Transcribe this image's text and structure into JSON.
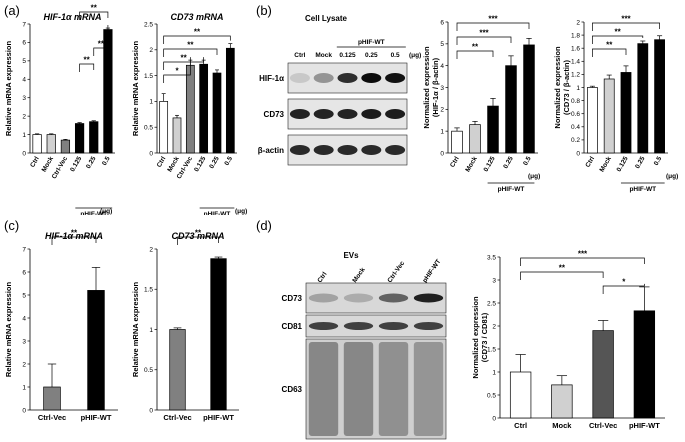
{
  "panels": [
    {
      "letter": "(a)",
      "charts": [
        {
          "id": "a1",
          "type": "bar",
          "title": "HIF-1α mRNA",
          "ylabel": "Relative mRNA expression",
          "ylim": [
            0,
            7
          ],
          "yticks": [
            0,
            1,
            2,
            3,
            4,
            5,
            6,
            7
          ],
          "categories": [
            "Ctrl",
            "Mock",
            "Ctrl-Vec",
            "0.125",
            "0.25",
            "0.5"
          ],
          "values": [
            1.0,
            1.0,
            0.7,
            1.6,
            1.7,
            6.7
          ],
          "errors": [
            0.04,
            0.04,
            0.04,
            0.05,
            0.05,
            0.08
          ],
          "colors": [
            "#ffffff",
            "#d0d0d0",
            "#808080",
            "#000000",
            "#000000",
            "#000000"
          ],
          "unit": "(μg)",
          "group_label": "pHIF-WT",
          "sig": [
            {
              "from": 3,
              "to": 5,
              "label": "**"
            },
            {
              "from": 4,
              "to": 5,
              "label": "**"
            },
            {
              "from": 3,
              "to": 4,
              "label": "**"
            }
          ]
        },
        {
          "id": "a2",
          "type": "bar",
          "title": "CD73 mRNA",
          "ylabel": "Relative mRNA expression",
          "ylim": [
            0,
            2.5
          ],
          "yticks": [
            0,
            0.5,
            1,
            1.5,
            2,
            2.5
          ],
          "categories": [
            "Ctrl",
            "Mock",
            "Ctrl-Vec",
            "0.125",
            "0.25",
            "0.5"
          ],
          "values": [
            1.0,
            0.68,
            1.7,
            1.72,
            1.55,
            2.03
          ],
          "errors": [
            0.15,
            0.05,
            0.1,
            0.08,
            0.06,
            0.09
          ],
          "colors": [
            "#ffffff",
            "#d0d0d0",
            "#808080",
            "#000000",
            "#000000",
            "#000000"
          ],
          "unit": "(μg)",
          "group_label": "pHIF-WT",
          "sig": [
            {
              "from": 0,
              "to": 5,
              "label": "**"
            },
            {
              "from": 0,
              "to": 4,
              "label": "**"
            },
            {
              "from": 0,
              "to": 3,
              "label": "**"
            },
            {
              "from": 0,
              "to": 2,
              "label": "*"
            }
          ]
        }
      ]
    },
    {
      "letter": "(b)",
      "blot": {
        "title": "Cell Lysate",
        "group_label": "pHIF-WT",
        "lanes": [
          "Ctrl",
          "Mock",
          "0.125",
          "0.25",
          "0.5"
        ],
        "unit": "(μg)",
        "rows": [
          "HIF-1α",
          "CD73",
          "β-actin"
        ]
      },
      "charts": [
        {
          "id": "b1",
          "type": "bar",
          "ylabel": "Normalized expression (HIF-1α / β-actin)",
          "ylabel_lines": [
            "Normalized expression",
            "(HIF-1α / β-actin)"
          ],
          "ylim": [
            0,
            6
          ],
          "yticks": [
            0,
            1,
            2,
            3,
            4,
            5,
            6
          ],
          "categories": [
            "Ctrl",
            "Mock",
            "0.125",
            "0.25",
            "0.5"
          ],
          "values": [
            1.0,
            1.3,
            2.15,
            4.0,
            4.95
          ],
          "errors": [
            0.15,
            0.15,
            0.35,
            0.45,
            0.3
          ],
          "colors": [
            "#ffffff",
            "#d0d0d0",
            "#000000",
            "#000000",
            "#000000"
          ],
          "unit": "(μg)",
          "group_label": "pHIF-WT",
          "sig": [
            {
              "from": 0,
              "to": 4,
              "label": "***"
            },
            {
              "from": 0,
              "to": 3,
              "label": "***"
            },
            {
              "from": 0,
              "to": 2,
              "label": "**"
            }
          ]
        },
        {
          "id": "b2",
          "type": "bar",
          "ylabel": "Normalized expression (CD73 / β-actin)",
          "ylabel_lines": [
            "Normalized expression",
            "(CD73 / β-actin)"
          ],
          "ylim": [
            0,
            2
          ],
          "yticks": [
            0,
            0.2,
            0.4,
            0.6,
            0.8,
            1,
            1.2,
            1.4,
            1.6,
            1.8,
            2
          ],
          "categories": [
            "Ctrl",
            "Mock",
            "0.125",
            "0.25",
            "0.5"
          ],
          "values": [
            1.0,
            1.13,
            1.23,
            1.67,
            1.73
          ],
          "errors": [
            0.02,
            0.06,
            0.1,
            0.04,
            0.06
          ],
          "colors": [
            "#ffffff",
            "#d0d0d0",
            "#000000",
            "#000000",
            "#000000"
          ],
          "unit": "(μg)",
          "group_label": "pHIF-WT",
          "sig": [
            {
              "from": 0,
              "to": 4,
              "label": "***"
            },
            {
              "from": 0,
              "to": 3,
              "label": "**"
            },
            {
              "from": 0,
              "to": 2,
              "label": "**"
            }
          ]
        }
      ]
    },
    {
      "letter": "(c)",
      "charts": [
        {
          "id": "c1",
          "type": "bar",
          "title": "HIF-1α mRNA",
          "ylabel": "Relative mRNA expression",
          "ylim": [
            0,
            7
          ],
          "yticks": [
            0,
            1,
            2,
            3,
            4,
            5,
            6,
            7
          ],
          "categories": [
            "Ctrl-Vec",
            "pHIF-WT"
          ],
          "values": [
            1.0,
            5.2
          ],
          "errors": [
            1.0,
            1.0
          ],
          "colors": [
            "#808080",
            "#000000"
          ],
          "sig": [
            {
              "from": 0,
              "to": 1,
              "label": "**"
            }
          ]
        },
        {
          "id": "c2",
          "type": "bar",
          "title": "CD73 mRNA",
          "ylabel": "Relative mRNA expression",
          "ylim": [
            0,
            2
          ],
          "yticks": [
            0,
            0.5,
            1,
            1.5,
            2
          ],
          "categories": [
            "Ctrl-Vec",
            "pHIF-WT"
          ],
          "values": [
            1.0,
            1.88
          ],
          "errors": [
            0.02,
            0.02
          ],
          "colors": [
            "#808080",
            "#000000"
          ],
          "sig": [
            {
              "from": 0,
              "to": 1,
              "label": "**"
            }
          ]
        }
      ]
    },
    {
      "letter": "(d)",
      "blot": {
        "title": "EVs",
        "lanes": [
          "Ctrl",
          "Mock",
          "Ctrl-Vec",
          "pHIF-WT"
        ],
        "rows": [
          "CD73",
          "CD81",
          "CD63"
        ]
      },
      "charts": [
        {
          "id": "d1",
          "type": "bar",
          "ylabel": "Normalized expression (CD73 / CD81)",
          "ylabel_lines": [
            "Normalized expression",
            "(CD73 / CD81)"
          ],
          "ylim": [
            0,
            3.5
          ],
          "yticks": [
            0,
            0.5,
            1,
            1.5,
            2,
            2.5,
            3,
            3.5
          ],
          "categories": [
            "Ctrl",
            "Mock",
            "Ctrl-Vec",
            "pHIF-WT"
          ],
          "values": [
            1.0,
            0.72,
            1.9,
            2.33
          ],
          "errors": [
            0.38,
            0.2,
            0.22,
            0.52
          ],
          "colors": [
            "#ffffff",
            "#d0d0d0",
            "#555555",
            "#000000"
          ],
          "sig": [
            {
              "from": 0,
              "to": 3,
              "label": "***"
            },
            {
              "from": 0,
              "to": 2,
              "label": "**"
            },
            {
              "from": 2,
              "to": 3,
              "label": "*"
            }
          ]
        }
      ]
    }
  ]
}
